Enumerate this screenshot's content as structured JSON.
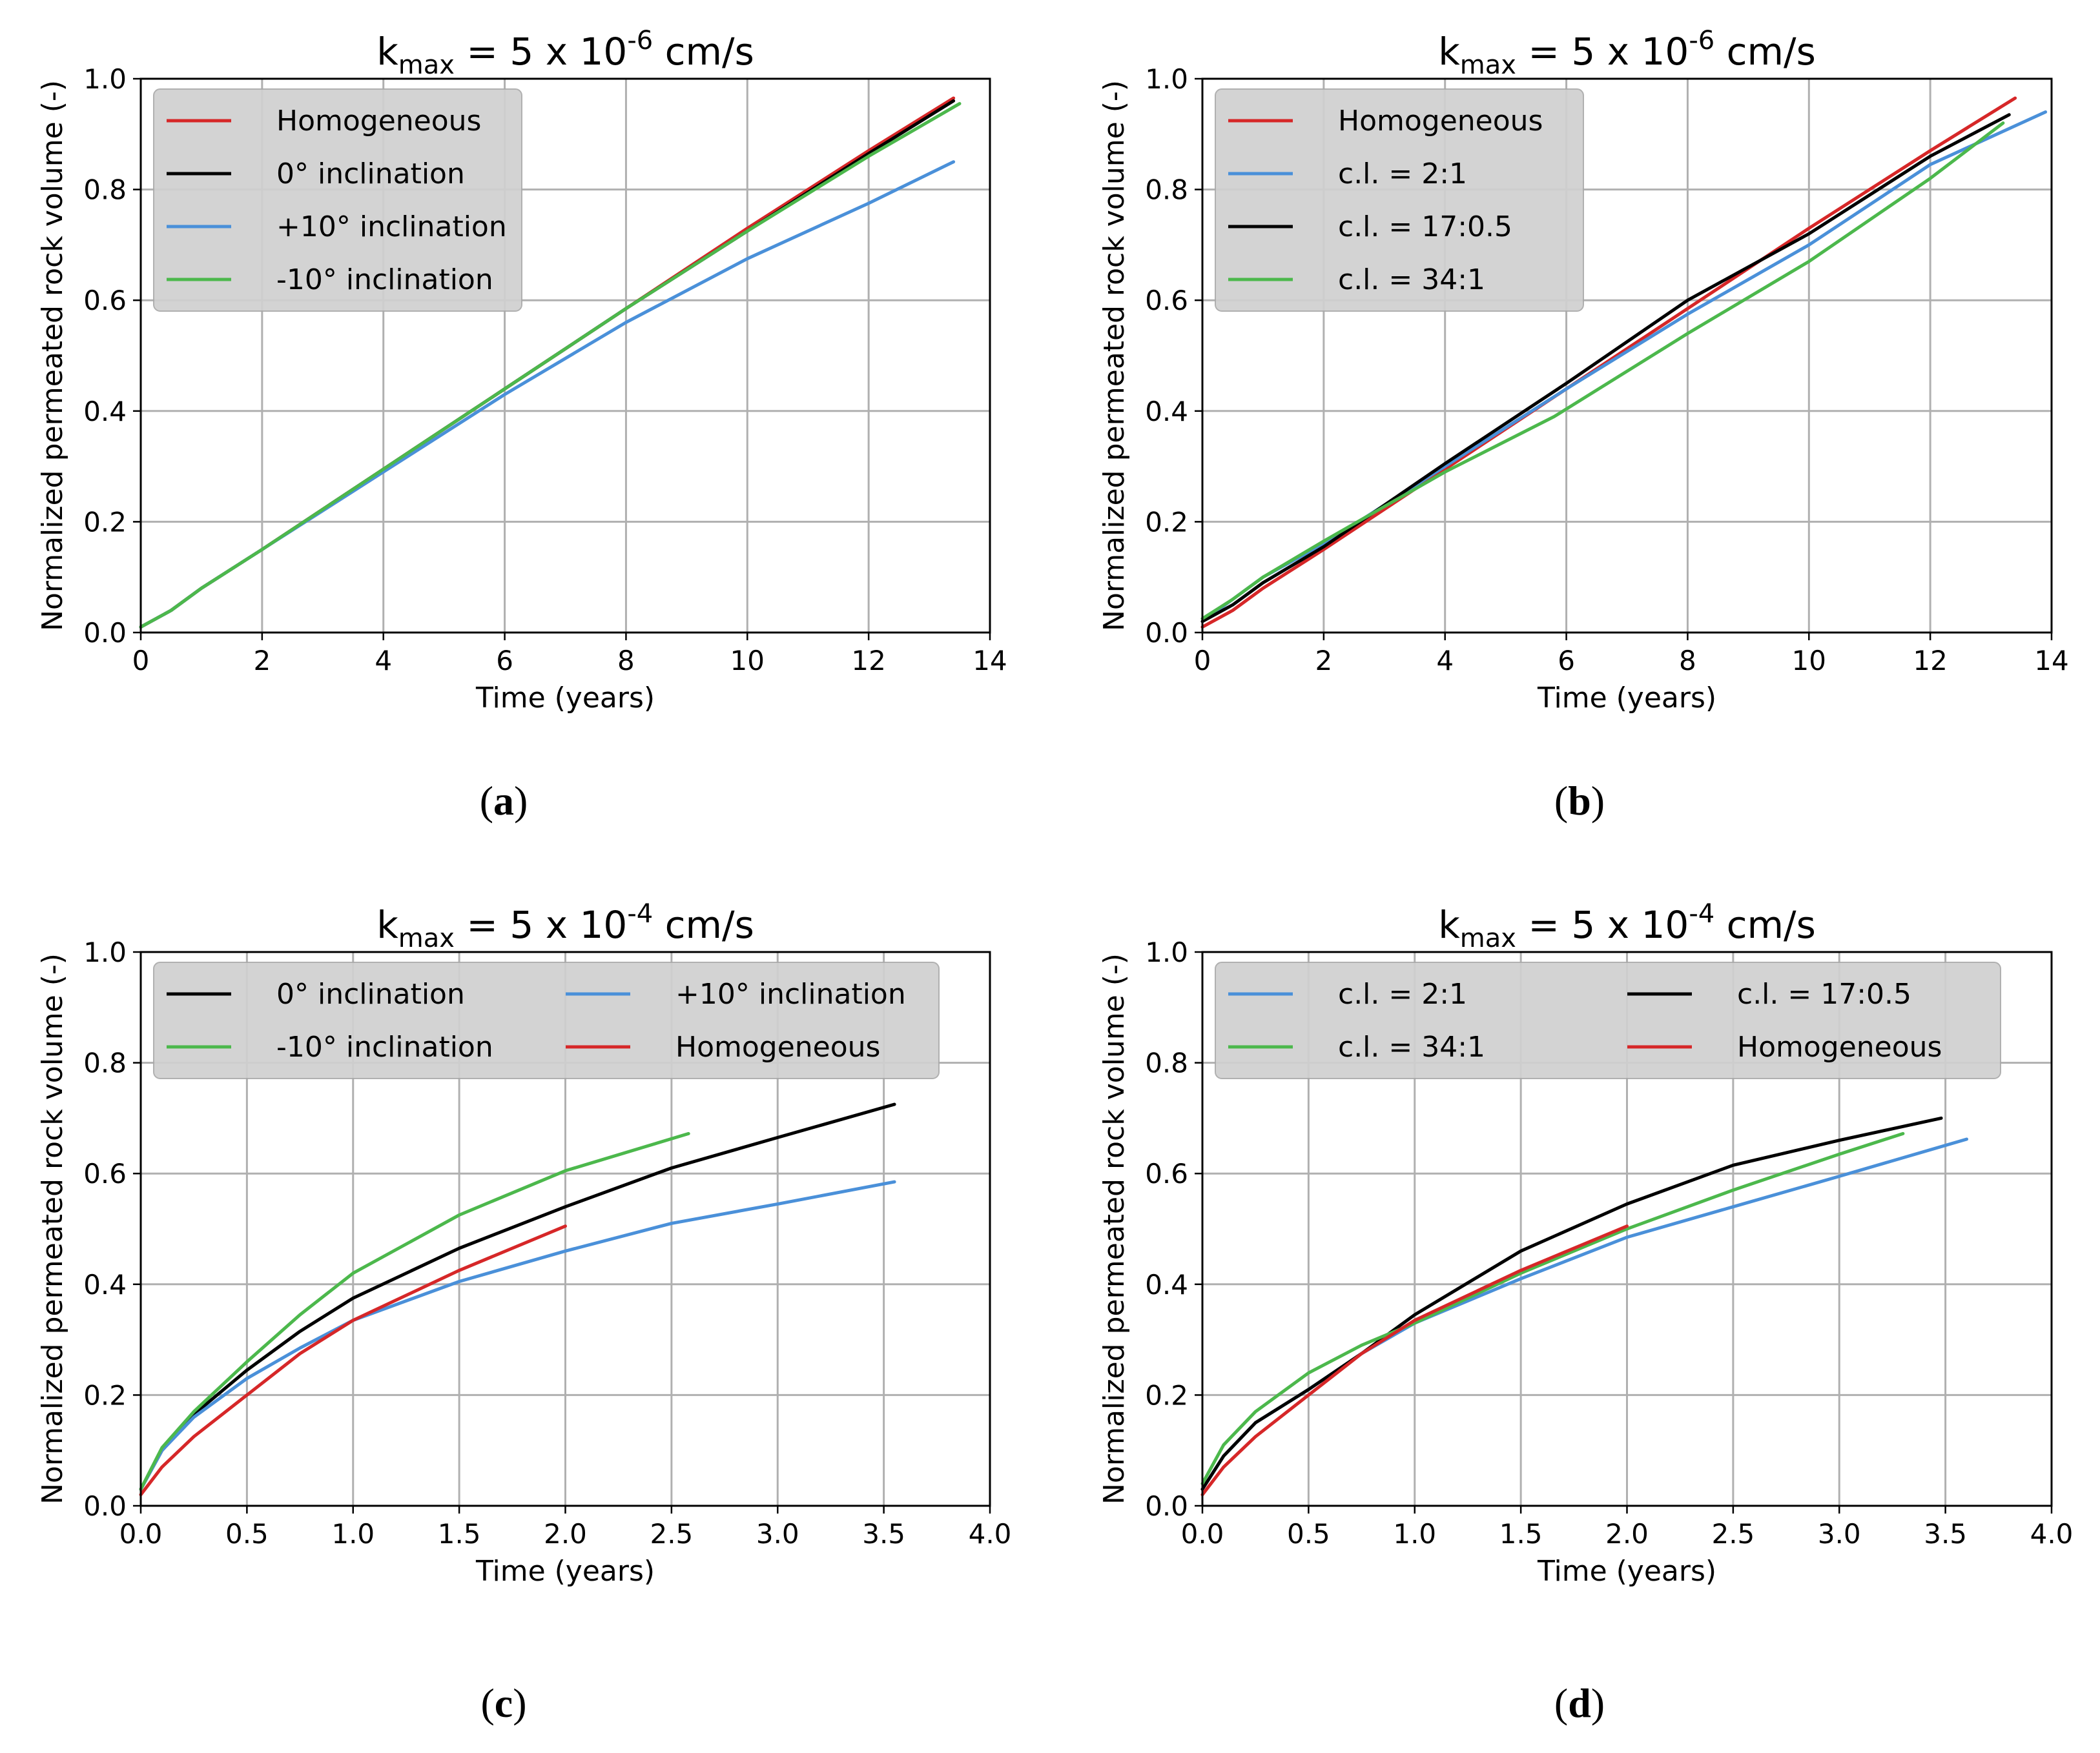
{
  "figure": {
    "captions": [
      "(a)",
      "(b)",
      "(c)",
      "(d)"
    ]
  },
  "colors": {
    "Homogeneous": "#d62728",
    "black": "#000000",
    "blue": "#4a90d9",
    "green": "#4cb84c"
  },
  "chart_data": [
    {
      "type": "line",
      "panel": "a",
      "title": {
        "prefix": "k",
        "sub": "max",
        "mid": " = 5 x 10",
        "sup": "-6",
        "suffix": " cm/s"
      },
      "xlabel": "Time (years)",
      "ylabel": "Normalized permeated rock volume (-)",
      "xlim": [
        0,
        14
      ],
      "ylim": [
        0,
        1.0
      ],
      "xticks": [
        0,
        2,
        4,
        6,
        8,
        10,
        12,
        14
      ],
      "xtick_labels": [
        "0",
        "2",
        "4",
        "6",
        "8",
        "10",
        "12",
        "14"
      ],
      "yticks": [
        0,
        0.2,
        0.4,
        0.6,
        0.8,
        1.0
      ],
      "ytick_labels": [
        "0.0",
        "0.2",
        "0.4",
        "0.6",
        "0.8",
        "1.0"
      ],
      "grid": true,
      "legend": {
        "placement": "top-left",
        "columns": 1
      },
      "series": [
        {
          "name": "Homogeneous",
          "color": "#d62728",
          "x": [
            0,
            0.5,
            1,
            2,
            4,
            6,
            8,
            10,
            12,
            13.4
          ],
          "y": [
            0.01,
            0.04,
            0.08,
            0.15,
            0.295,
            0.44,
            0.585,
            0.73,
            0.87,
            0.965
          ]
        },
        {
          "name": "0° inclination",
          "color": "#000000",
          "x": [
            0,
            0.5,
            1,
            2,
            4,
            6,
            8,
            10,
            12,
            13.4
          ],
          "y": [
            0.01,
            0.04,
            0.08,
            0.15,
            0.295,
            0.44,
            0.585,
            0.725,
            0.865,
            0.96
          ]
        },
        {
          "name": "+10° inclination",
          "color": "#4a90d9",
          "x": [
            0,
            0.5,
            1,
            2,
            4,
            6,
            8,
            10,
            12,
            13.4
          ],
          "y": [
            0.01,
            0.04,
            0.08,
            0.15,
            0.29,
            0.43,
            0.56,
            0.675,
            0.775,
            0.85
          ]
        },
        {
          "name": "-10° inclination",
          "color": "#4cb84c",
          "x": [
            0,
            0.5,
            1,
            2,
            4,
            6,
            8,
            10,
            12,
            13.5
          ],
          "y": [
            0.01,
            0.04,
            0.08,
            0.15,
            0.295,
            0.44,
            0.585,
            0.725,
            0.86,
            0.955
          ]
        }
      ]
    },
    {
      "type": "line",
      "panel": "b",
      "title": {
        "prefix": "k",
        "sub": "max",
        "mid": " = 5 x 10",
        "sup": "-6",
        "suffix": " cm/s"
      },
      "xlabel": "Time (years)",
      "ylabel": "Normalized permeated rock volume (-)",
      "xlim": [
        0,
        14
      ],
      "ylim": [
        0,
        1.0
      ],
      "xticks": [
        0,
        2,
        4,
        6,
        8,
        10,
        12,
        14
      ],
      "xtick_labels": [
        "0",
        "2",
        "4",
        "6",
        "8",
        "10",
        "12",
        "14"
      ],
      "yticks": [
        0,
        0.2,
        0.4,
        0.6,
        0.8,
        1.0
      ],
      "ytick_labels": [
        "0.0",
        "0.2",
        "0.4",
        "0.6",
        "0.8",
        "1.0"
      ],
      "grid": true,
      "legend": {
        "placement": "top-left",
        "columns": 1
      },
      "series": [
        {
          "name": "Homogeneous",
          "color": "#d62728",
          "x": [
            0,
            0.5,
            1,
            2,
            4,
            6,
            8,
            10,
            12,
            13.4
          ],
          "y": [
            0.01,
            0.04,
            0.08,
            0.15,
            0.295,
            0.44,
            0.585,
            0.73,
            0.87,
            0.965
          ]
        },
        {
          "name": "c.l. = 2:1",
          "color": "#4a90d9",
          "x": [
            0,
            0.5,
            1,
            2,
            4,
            6,
            8,
            10,
            12,
            13.9
          ],
          "y": [
            0.02,
            0.06,
            0.1,
            0.16,
            0.3,
            0.44,
            0.575,
            0.7,
            0.845,
            0.94
          ]
        },
        {
          "name": "c.l. = 17:0.5",
          "color": "#000000",
          "x": [
            0,
            0.5,
            1,
            2,
            4,
            6,
            8,
            10,
            12,
            13.3
          ],
          "y": [
            0.02,
            0.05,
            0.09,
            0.155,
            0.305,
            0.45,
            0.6,
            0.72,
            0.86,
            0.935
          ]
        },
        {
          "name": "c.l. = 34:1",
          "color": "#4cb84c",
          "x": [
            0,
            0.5,
            1,
            2,
            4,
            5.8,
            8,
            10,
            12,
            13.2
          ],
          "y": [
            0.025,
            0.06,
            0.1,
            0.165,
            0.29,
            0.39,
            0.54,
            0.67,
            0.82,
            0.92
          ]
        }
      ]
    },
    {
      "type": "line",
      "panel": "c",
      "title": {
        "prefix": "k",
        "sub": "max",
        "mid": " = 5 x 10",
        "sup": "-4",
        "suffix": " cm/s"
      },
      "xlabel": "Time (years)",
      "ylabel": "Normalized permeated rock volume (-)",
      "xlim": [
        0,
        4.0
      ],
      "ylim": [
        0,
        1.0
      ],
      "xticks": [
        0,
        0.5,
        1.0,
        1.5,
        2.0,
        2.5,
        3.0,
        3.5,
        4.0
      ],
      "xtick_labels": [
        "0.0",
        "0.5",
        "1.0",
        "1.5",
        "2.0",
        "2.5",
        "3.0",
        "3.5",
        "4.0"
      ],
      "yticks": [
        0,
        0.2,
        0.4,
        0.6,
        0.8,
        1.0
      ],
      "ytick_labels": [
        "0.0",
        "0.2",
        "0.4",
        "0.6",
        "0.8",
        "1.0"
      ],
      "grid": true,
      "legend": {
        "placement": "top",
        "columns": 2
      },
      "series": [
        {
          "name": "0° inclination",
          "color": "#000000",
          "x": [
            0,
            0.1,
            0.25,
            0.5,
            0.75,
            1.0,
            1.5,
            2.0,
            2.5,
            3.0,
            3.55
          ],
          "y": [
            0.03,
            0.1,
            0.165,
            0.245,
            0.315,
            0.375,
            0.465,
            0.54,
            0.61,
            0.665,
            0.725
          ]
        },
        {
          "name": "+10° inclination",
          "color": "#4a90d9",
          "x": [
            0,
            0.1,
            0.25,
            0.5,
            0.75,
            1.0,
            1.5,
            2.0,
            2.5,
            3.0,
            3.55
          ],
          "y": [
            0.03,
            0.1,
            0.16,
            0.23,
            0.285,
            0.335,
            0.405,
            0.46,
            0.51,
            0.545,
            0.585
          ]
        },
        {
          "name": "-10° inclination",
          "color": "#4cb84c",
          "x": [
            0,
            0.1,
            0.25,
            0.5,
            0.75,
            1.0,
            1.5,
            2.0,
            2.58
          ],
          "y": [
            0.03,
            0.105,
            0.17,
            0.26,
            0.345,
            0.42,
            0.525,
            0.605,
            0.672
          ]
        },
        {
          "name": "Homogeneous",
          "color": "#d62728",
          "x": [
            0,
            0.1,
            0.25,
            0.5,
            0.75,
            1.0,
            1.5,
            2.0
          ],
          "y": [
            0.02,
            0.07,
            0.125,
            0.2,
            0.275,
            0.335,
            0.425,
            0.505
          ]
        }
      ]
    },
    {
      "type": "line",
      "panel": "d",
      "title": {
        "prefix": "k",
        "sub": "max",
        "mid": " = 5 x 10",
        "sup": "-4",
        "suffix": " cm/s"
      },
      "xlabel": "Time (years)",
      "ylabel": "Normalized permeated rock volume (-)",
      "xlim": [
        0,
        4.0
      ],
      "ylim": [
        0,
        1.0
      ],
      "xticks": [
        0,
        0.5,
        1.0,
        1.5,
        2.0,
        2.5,
        3.0,
        3.5,
        4.0
      ],
      "xtick_labels": [
        "0.0",
        "0.5",
        "1.0",
        "1.5",
        "2.0",
        "2.5",
        "3.0",
        "3.5",
        "4.0"
      ],
      "yticks": [
        0,
        0.2,
        0.4,
        0.6,
        0.8,
        1.0
      ],
      "ytick_labels": [
        "0.0",
        "0.2",
        "0.4",
        "0.6",
        "0.8",
        "1.0"
      ],
      "grid": true,
      "legend": {
        "placement": "top",
        "columns": 2
      },
      "series": [
        {
          "name": "c.l. = 2:1",
          "color": "#4a90d9",
          "x": [
            0,
            0.1,
            0.25,
            0.5,
            0.75,
            1.0,
            1.5,
            2.0,
            2.5,
            3.0,
            3.6
          ],
          "y": [
            0.03,
            0.09,
            0.15,
            0.21,
            0.275,
            0.33,
            0.41,
            0.485,
            0.54,
            0.595,
            0.662
          ]
        },
        {
          "name": "c.l. = 17:0.5",
          "color": "#000000",
          "x": [
            0,
            0.1,
            0.25,
            0.5,
            0.75,
            1.0,
            1.5,
            2.0,
            2.5,
            3.0,
            3.48
          ],
          "y": [
            0.03,
            0.09,
            0.15,
            0.21,
            0.275,
            0.345,
            0.46,
            0.545,
            0.615,
            0.66,
            0.7
          ]
        },
        {
          "name": "c.l. = 34:1",
          "color": "#4cb84c",
          "x": [
            0,
            0.1,
            0.25,
            0.5,
            0.75,
            1.0,
            1.5,
            2.0,
            2.5,
            3.0,
            3.3
          ],
          "y": [
            0.04,
            0.11,
            0.17,
            0.24,
            0.29,
            0.33,
            0.42,
            0.5,
            0.57,
            0.635,
            0.672
          ]
        },
        {
          "name": "Homogeneous",
          "color": "#d62728",
          "x": [
            0,
            0.1,
            0.25,
            0.5,
            0.75,
            1.0,
            1.5,
            2.0
          ],
          "y": [
            0.02,
            0.07,
            0.125,
            0.2,
            0.275,
            0.335,
            0.425,
            0.505
          ]
        }
      ]
    }
  ]
}
